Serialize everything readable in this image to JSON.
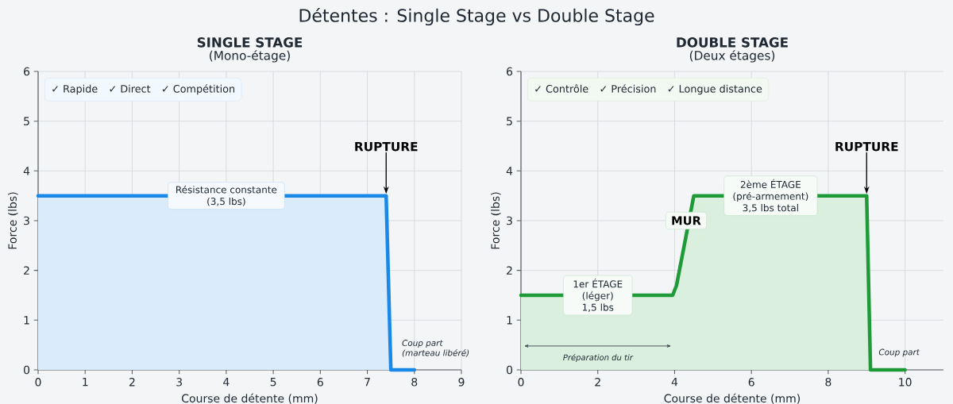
{
  "chart_data": [
    {
      "type": "other",
      "title": "Détentes : Single Stage vs Double Stage"
    },
    {
      "type": "area",
      "title": "SINGLE STAGE",
      "subtitle": "(Mono-étage)",
      "xlabel": "Course de détente (mm)",
      "ylabel": "Force (lbs)",
      "xlim": [
        0,
        9
      ],
      "ylim": [
        0,
        6
      ],
      "xticks": [
        0,
        1,
        2,
        3,
        4,
        5,
        6,
        7,
        8,
        9
      ],
      "yticks": [
        0,
        1,
        2,
        3,
        4,
        5,
        6
      ],
      "grid": true,
      "series": [
        {
          "color": "#1a88e6",
          "x": [
            0,
            7.4,
            7.5,
            8
          ],
          "values": [
            3.5,
            3.5,
            0,
            0
          ]
        }
      ],
      "annotations": [
        {
          "text": "Résistance constante (3,5 lbs)",
          "x": 4,
          "y": 3.5
        },
        {
          "text": "RUPTURE",
          "x": 7.4,
          "y": 3.5
        },
        "Coup part (marteau libéré)",
        "✓ Rapide",
        "✓ Direct",
        "✓ Compétition"
      ]
    },
    {
      "type": "area",
      "title": "DOUBLE STAGE",
      "subtitle": "(Deux étages)",
      "xlabel": "Course de détente (mm)",
      "ylabel": "Force (lbs)",
      "xlim": [
        0,
        11
      ],
      "ylim": [
        0,
        6
      ],
      "xticks": [
        0,
        2,
        4,
        6,
        8,
        10
      ],
      "yticks": [
        0,
        1,
        2,
        3,
        4,
        5,
        6
      ],
      "grid": true,
      "series": [
        {
          "color": "#1e9b38",
          "x": [
            0,
            3.95,
            4.05,
            4.5,
            9,
            9.1,
            10
          ],
          "values": [
            1.5,
            1.5,
            1.7,
            3.5,
            3.5,
            0,
            0
          ]
        }
      ],
      "annotations": [
        {
          "text": "1er ÉTAGE (léger) 1,5 lbs",
          "x": 2,
          "y": 1.5
        },
        {
          "text": "MUR",
          "x": 4.3,
          "y": 3
        },
        {
          "text": "2ème ÉTAGE (pré-armement) 3,5 lbs total",
          "x": 6.5,
          "y": 3.5
        },
        {
          "text": "RUPTURE",
          "x": 9,
          "y": 3.5
        },
        "Coup part",
        "Préparation du tir",
        "✓ Contrôle",
        "✓ Précision",
        "✓ Longue distance"
      ]
    }
  ]
}
